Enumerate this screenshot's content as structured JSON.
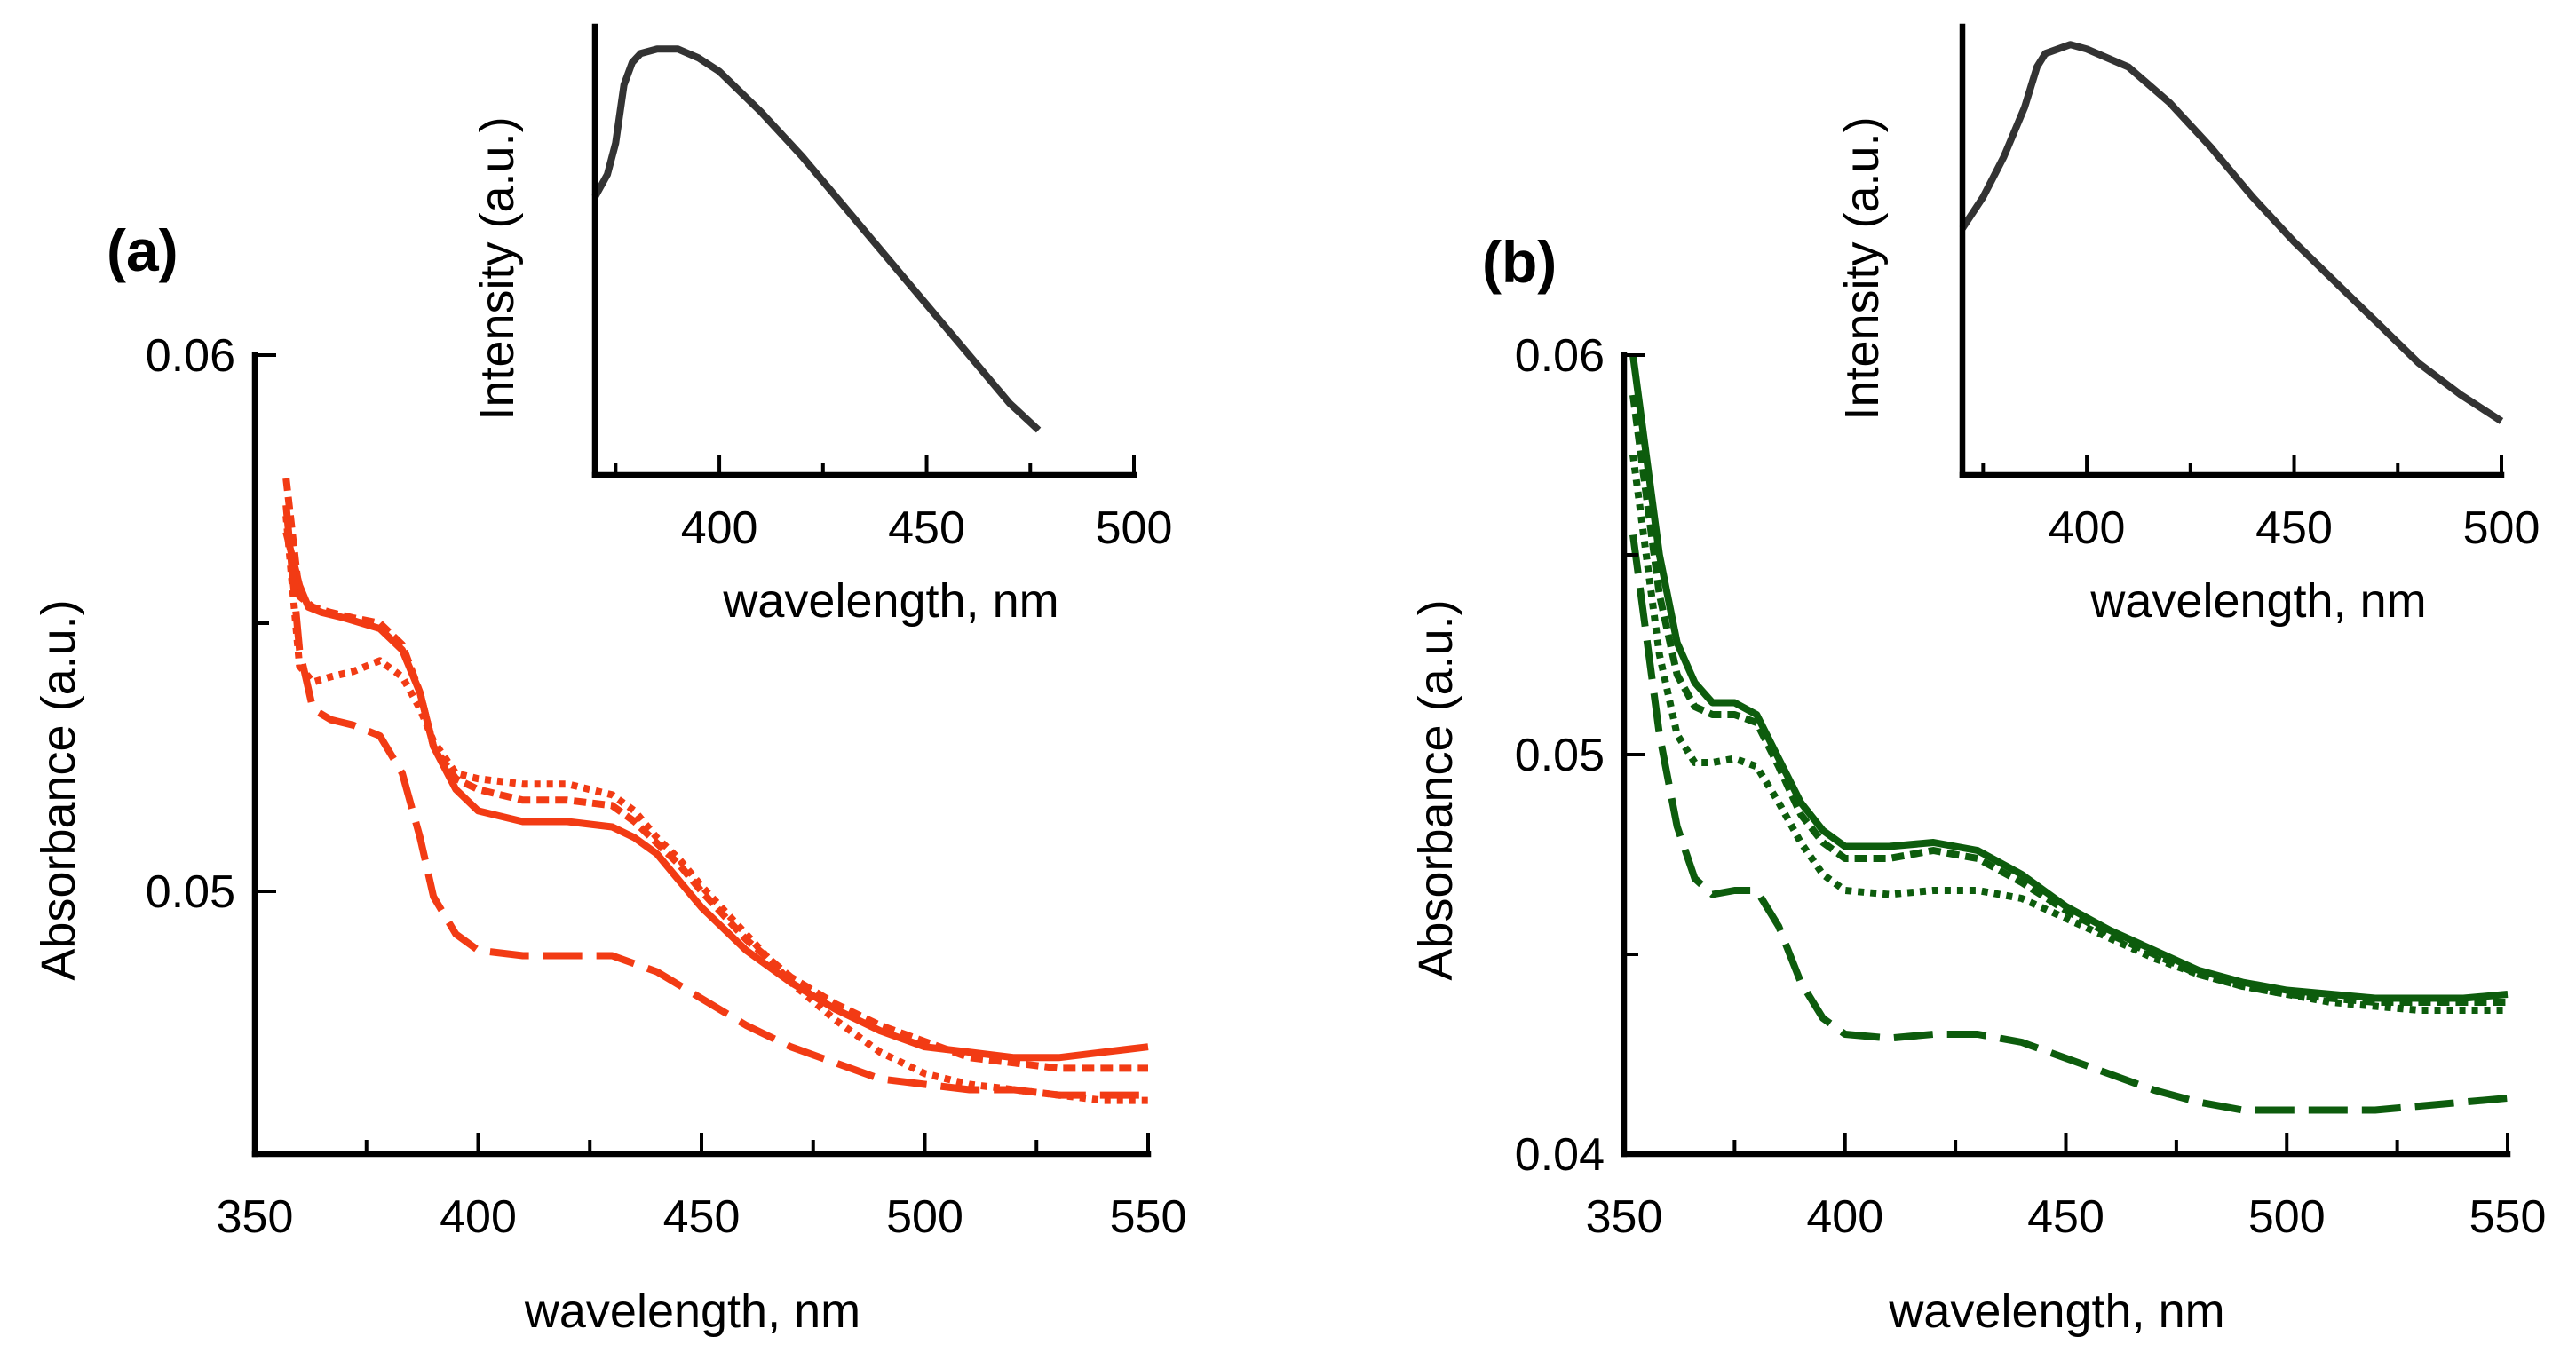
{
  "chart_data": [
    {
      "panel_label": "(a)",
      "type": "line",
      "color": "#f23b14",
      "xlabel": "wavelength, nm",
      "ylabel": "Absorbance (a.u.)",
      "xlim": [
        350,
        550
      ],
      "ylim": [
        0.0451,
        0.06
      ],
      "xticks": [
        350,
        400,
        450,
        500,
        550
      ],
      "xtick_labels": [
        "350",
        "400",
        "450",
        "500",
        "550"
      ],
      "xminor": [
        375,
        425,
        475,
        525
      ],
      "yticks": [
        0.05,
        0.06
      ],
      "ytick_labels": [
        "0.05",
        "0.06"
      ],
      "yminor": [
        0.055
      ],
      "series": [
        {
          "name": "solid",
          "dash": "solid",
          "x": [
            357,
            360,
            362,
            365,
            370,
            378,
            383,
            387,
            390,
            395,
            400,
            410,
            420,
            430,
            435,
            440,
            445,
            450,
            460,
            470,
            480,
            490,
            500,
            510,
            520,
            530,
            540,
            550
          ],
          "y": [
            0.0567,
            0.0557,
            0.0553,
            0.0552,
            0.0551,
            0.0549,
            0.0545,
            0.0537,
            0.0527,
            0.0519,
            0.0515,
            0.0513,
            0.0513,
            0.0512,
            0.051,
            0.0507,
            0.0502,
            0.0497,
            0.0489,
            0.0483,
            0.0478,
            0.0474,
            0.0471,
            0.047,
            0.0469,
            0.0469,
            0.047,
            0.0471
          ]
        },
        {
          "name": "short-dash",
          "dash": "14,7",
          "x": [
            357,
            360,
            363,
            367,
            372,
            378,
            383,
            387,
            390,
            395,
            400,
            410,
            420,
            430,
            435,
            440,
            445,
            450,
            460,
            470,
            480,
            490,
            500,
            510,
            520,
            530,
            540,
            550
          ],
          "y": [
            0.0577,
            0.0555,
            0.0553,
            0.0552,
            0.0551,
            0.055,
            0.0546,
            0.0537,
            0.0527,
            0.0521,
            0.0519,
            0.0517,
            0.0517,
            0.0516,
            0.0513,
            0.0509,
            0.0505,
            0.05,
            0.0491,
            0.0484,
            0.0479,
            0.0475,
            0.0472,
            0.0469,
            0.0468,
            0.0467,
            0.0467,
            0.0467
          ]
        },
        {
          "name": "dotted",
          "dash": "7,7",
          "x": [
            357,
            360,
            363,
            367,
            372,
            378,
            383,
            387,
            390,
            395,
            400,
            410,
            420,
            430,
            435,
            440,
            445,
            450,
            460,
            470,
            480,
            490,
            500,
            510,
            520,
            530,
            540,
            550
          ],
          "y": [
            0.057,
            0.0542,
            0.0539,
            0.054,
            0.0541,
            0.0543,
            0.054,
            0.0534,
            0.0528,
            0.0522,
            0.0521,
            0.052,
            0.052,
            0.0518,
            0.0515,
            0.051,
            0.0506,
            0.0501,
            0.0492,
            0.0483,
            0.0476,
            0.047,
            0.0466,
            0.0464,
            0.0463,
            0.0462,
            0.0461,
            0.0461
          ]
        },
        {
          "name": "long-dash",
          "dash": "44,16",
          "x": [
            357,
            360,
            363,
            367,
            372,
            378,
            383,
            387,
            390,
            395,
            400,
            410,
            420,
            430,
            440,
            450,
            460,
            470,
            480,
            490,
            500,
            510,
            520,
            530,
            540,
            550
          ],
          "y": [
            0.0572,
            0.0545,
            0.0534,
            0.0532,
            0.0531,
            0.0529,
            0.0522,
            0.051,
            0.0499,
            0.0492,
            0.0489,
            0.0488,
            0.0488,
            0.0488,
            0.0485,
            0.048,
            0.0475,
            0.0471,
            0.0468,
            0.0465,
            0.0464,
            0.0463,
            0.0463,
            0.0462,
            0.0462,
            0.0462
          ]
        }
      ],
      "inset": {
        "type": "line",
        "xlabel": "wavelength, nm",
        "ylabel": "Intensity (a.u.)",
        "xlim": [
          370,
          500
        ],
        "ylim": [
          0,
          1
        ],
        "xticks": [
          400,
          450,
          500
        ],
        "xtick_labels": [
          "400",
          "450",
          "500"
        ],
        "xminor": [
          375,
          425,
          475
        ],
        "x": [
          370,
          373,
          375,
          377,
          379,
          381,
          385,
          390,
          395,
          400,
          410,
          420,
          430,
          440,
          450,
          460,
          470,
          477
        ],
        "y": [
          0.62,
          0.67,
          0.74,
          0.87,
          0.92,
          0.94,
          0.95,
          0.95,
          0.93,
          0.9,
          0.81,
          0.71,
          0.6,
          0.49,
          0.38,
          0.27,
          0.16,
          0.1
        ]
      }
    },
    {
      "panel_label": "(b)",
      "type": "line",
      "color": "#0d5c0d",
      "xlabel": "wavelength, nm",
      "ylabel": "Absorbance (a.u.)",
      "xlim": [
        350,
        550
      ],
      "ylim": [
        0.04,
        0.06
      ],
      "xticks": [
        350,
        400,
        450,
        500,
        550
      ],
      "xtick_labels": [
        "350",
        "400",
        "450",
        "500",
        "550"
      ],
      "xminor": [
        375,
        425,
        475,
        525
      ],
      "yticks": [
        0.04,
        0.05,
        0.06
      ],
      "ytick_labels": [
        "0.04",
        "0.05",
        "0.06"
      ],
      "yminor": [
        0.045,
        0.055
      ],
      "series": [
        {
          "name": "solid",
          "dash": "solid",
          "x": [
            352,
            355,
            358,
            362,
            366,
            370,
            375,
            380,
            385,
            390,
            395,
            400,
            410,
            420,
            430,
            440,
            450,
            460,
            470,
            480,
            490,
            500,
            510,
            520,
            530,
            540,
            550
          ],
          "y": [
            0.06,
            0.0575,
            0.055,
            0.0528,
            0.0518,
            0.0513,
            0.0513,
            0.051,
            0.0499,
            0.0488,
            0.0481,
            0.0477,
            0.0477,
            0.0478,
            0.0476,
            0.047,
            0.0462,
            0.0456,
            0.0451,
            0.0446,
            0.0443,
            0.0441,
            0.044,
            0.0439,
            0.0439,
            0.0439,
            0.044
          ]
        },
        {
          "name": "short-dash",
          "dash": "14,7",
          "x": [
            352,
            355,
            358,
            362,
            366,
            370,
            375,
            380,
            385,
            390,
            395,
            400,
            410,
            420,
            430,
            440,
            450,
            460,
            470,
            480,
            490,
            500,
            510,
            520,
            530,
            540,
            550
          ],
          "y": [
            0.059,
            0.0565,
            0.054,
            0.052,
            0.0512,
            0.051,
            0.051,
            0.0508,
            0.0497,
            0.0485,
            0.0478,
            0.0474,
            0.0474,
            0.0476,
            0.0474,
            0.0468,
            0.0461,
            0.0455,
            0.045,
            0.0445,
            0.0442,
            0.044,
            0.0439,
            0.0438,
            0.0438,
            0.0438,
            0.0438
          ]
        },
        {
          "name": "dotted",
          "dash": "7,7",
          "x": [
            352,
            355,
            358,
            362,
            366,
            370,
            375,
            380,
            385,
            390,
            395,
            400,
            410,
            420,
            430,
            440,
            450,
            460,
            470,
            480,
            490,
            500,
            510,
            520,
            530,
            540,
            550
          ],
          "y": [
            0.0575,
            0.055,
            0.0525,
            0.0505,
            0.0498,
            0.0498,
            0.0499,
            0.0497,
            0.0488,
            0.0478,
            0.047,
            0.0466,
            0.0465,
            0.0466,
            0.0466,
            0.0464,
            0.0459,
            0.0454,
            0.0449,
            0.0445,
            0.0442,
            0.044,
            0.0438,
            0.0437,
            0.0436,
            0.0436,
            0.0436
          ]
        },
        {
          "name": "long-dash",
          "dash": "44,16",
          "x": [
            352,
            355,
            358,
            362,
            366,
            370,
            375,
            380,
            385,
            390,
            395,
            400,
            410,
            420,
            430,
            440,
            450,
            460,
            470,
            480,
            490,
            500,
            510,
            520,
            530,
            540,
            550
          ],
          "y": [
            0.0555,
            0.053,
            0.0505,
            0.0482,
            0.0469,
            0.0465,
            0.0466,
            0.0466,
            0.0457,
            0.0443,
            0.0434,
            0.043,
            0.0429,
            0.043,
            0.043,
            0.0428,
            0.0424,
            0.042,
            0.0416,
            0.0413,
            0.0411,
            0.0411,
            0.0411,
            0.0411,
            0.0412,
            0.0413,
            0.0414
          ]
        }
      ],
      "inset": {
        "type": "line",
        "xlabel": "wavelength, nm",
        "ylabel": "Intensity (a.u.)",
        "xlim": [
          370,
          500
        ],
        "ylim": [
          0,
          1
        ],
        "xticks": [
          400,
          450,
          500
        ],
        "xtick_labels": [
          "400",
          "450",
          "500"
        ],
        "xminor": [
          375,
          425,
          475
        ],
        "x": [
          370,
          375,
          380,
          385,
          388,
          390,
          393,
          396,
          400,
          410,
          420,
          430,
          440,
          450,
          460,
          470,
          480,
          490,
          500
        ],
        "y": [
          0.55,
          0.62,
          0.71,
          0.82,
          0.91,
          0.94,
          0.95,
          0.96,
          0.95,
          0.91,
          0.83,
          0.73,
          0.62,
          0.52,
          0.43,
          0.34,
          0.25,
          0.18,
          0.12
        ]
      }
    }
  ]
}
